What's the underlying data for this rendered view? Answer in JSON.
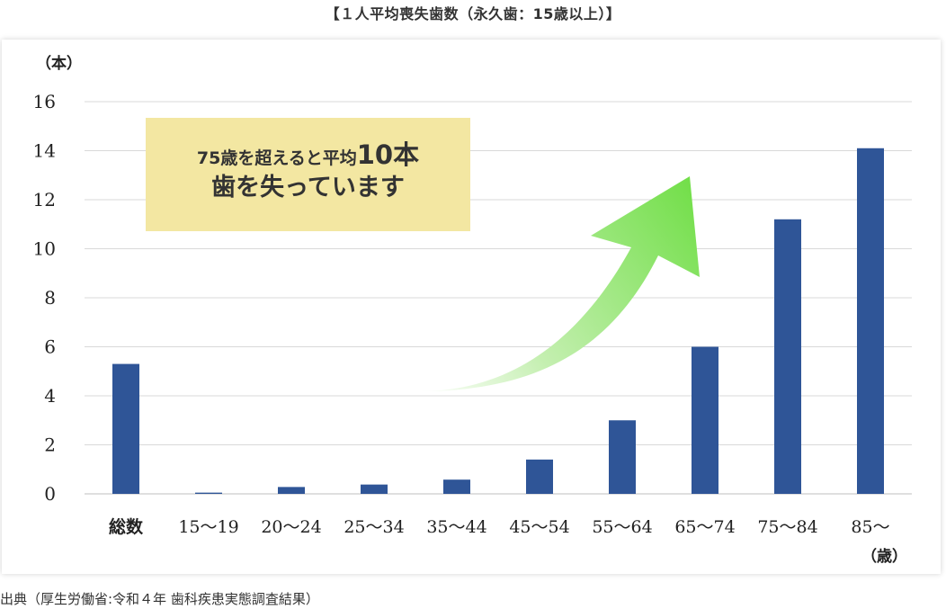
{
  "page_title": "【１人平均喪失歯数（永久歯：15歳以上）】",
  "callout": {
    "line1_prefix": "75歳を超えると平均",
    "line1_emphasis": "10本",
    "line2": "歯を失っています"
  },
  "source": "出典（厚生労働省:令和４年 歯科疾患実態調査結果）",
  "colors": {
    "bar": "#2f5597",
    "callout_bg": "#f3e7a2",
    "arrow": "#7ed957"
  },
  "chart_data": {
    "type": "bar",
    "title": "【１人平均喪失歯数（永久歯：15歳以上）】",
    "ylabel": "（本）",
    "xlabel": "（歳）",
    "ylim": [
      0,
      16
    ],
    "yticks": [
      0,
      2,
      4,
      6,
      8,
      10,
      12,
      14,
      16
    ],
    "grid": true,
    "categories": [
      "総数",
      "15～19",
      "20～24",
      "25～34",
      "35～44",
      "45～54",
      "55～64",
      "65～74",
      "75～84",
      "85～"
    ],
    "values": [
      5.3,
      0.05,
      0.28,
      0.38,
      0.58,
      1.4,
      3.0,
      6.0,
      11.2,
      14.1
    ]
  }
}
